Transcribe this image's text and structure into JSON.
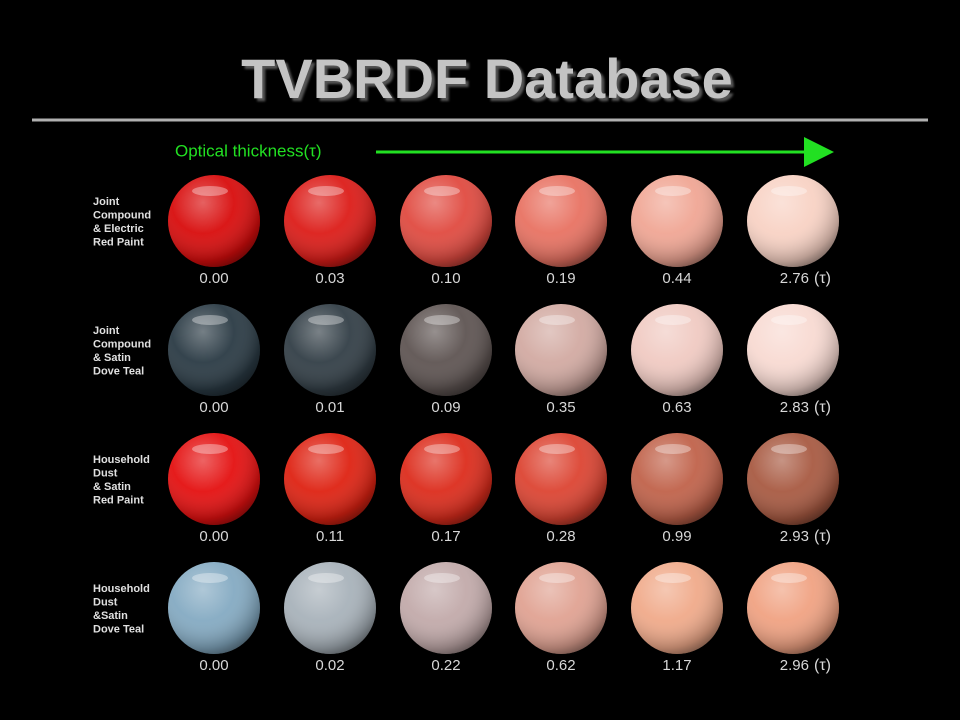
{
  "title": "TVBRDF Database",
  "axis_label": "Optical thickness(τ)",
  "unit_label": "(τ)",
  "rows": [
    {
      "label": [
        "Joint",
        "Compound",
        "& Electric",
        "Red Paint"
      ],
      "values": [
        "0.00",
        "0.03",
        "0.10",
        "0.19",
        "0.44",
        "2.76"
      ],
      "colors": [
        "#d80c0c",
        "#dc1c18",
        "#e04a40",
        "#e87262",
        "#f0a694",
        "#f8d2c4"
      ]
    },
    {
      "label": [
        "Joint",
        "Compound",
        "& Satin",
        "Dove Teal"
      ],
      "values": [
        "0.00",
        "0.01",
        "0.09",
        "0.35",
        "0.63",
        "2.83"
      ],
      "colors": [
        "#2a3a44",
        "#323e46",
        "#5e5452",
        "#d2aaa2",
        "#f0cac2",
        "#f8dad2"
      ]
    },
    {
      "label": [
        "Household",
        "Dust",
        "& Satin",
        "Red Paint"
      ],
      "values": [
        "0.00",
        "0.11",
        "0.17",
        "0.28",
        "0.99",
        "2.93"
      ],
      "colors": [
        "#e41010",
        "#de2212",
        "#dc2c1c",
        "#dc4432",
        "#c0624a",
        "#a85a42"
      ]
    },
    {
      "label": [
        "Household",
        "Dust",
        "&Satin",
        "Dove Teal"
      ],
      "values": [
        "0.00",
        "0.02",
        "0.22",
        "0.62",
        "1.17",
        "2.96"
      ],
      "colors": [
        "#84aac2",
        "#a8b2ba",
        "#c2aaaa",
        "#e0a292",
        "#f0aa8a",
        "#f0a282"
      ]
    }
  ]
}
